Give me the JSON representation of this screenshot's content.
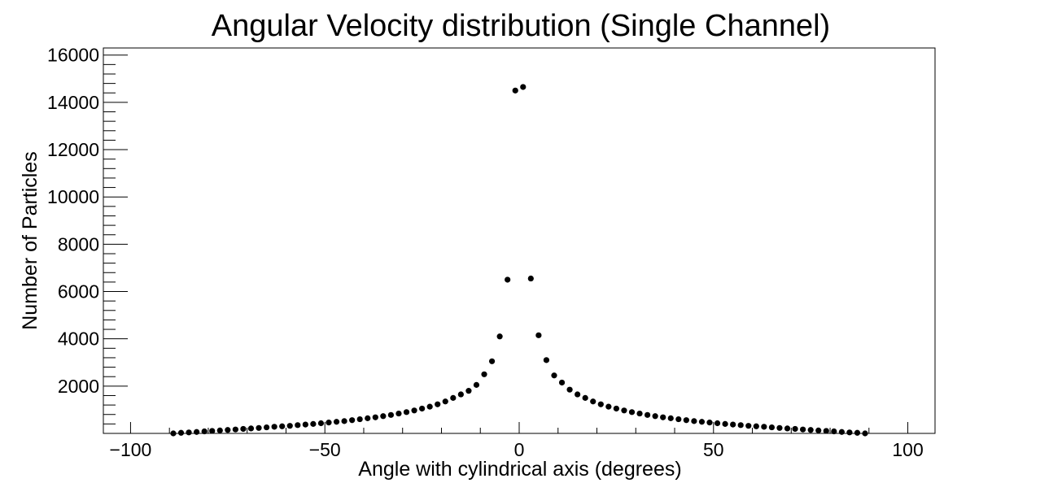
{
  "chart_data": {
    "type": "scatter",
    "title": "Angular Velocity distribution (Single Channel)",
    "xlabel": "Angle with cylindrical axis (degrees)",
    "ylabel": "Number of Particles",
    "xlim": [
      -107,
      107
    ],
    "ylim": [
      0,
      16300
    ],
    "x_ticks": [
      -100,
      -50,
      0,
      50,
      100
    ],
    "x_tick_labels": [
      "−100",
      "−50",
      "0",
      "50",
      "100"
    ],
    "y_ticks": [
      2000,
      4000,
      6000,
      8000,
      10000,
      12000,
      14000,
      16000
    ],
    "y_tick_labels": [
      "2000",
      "4000",
      "6000",
      "8000",
      "10000",
      "12000",
      "14000",
      "16000"
    ],
    "grid": false,
    "legend": "none",
    "marker_color": "#000000",
    "series": [
      {
        "x": [
          -89,
          -87,
          -85,
          -83,
          -81,
          -79,
          -77,
          -75,
          -73,
          -71,
          -69,
          -67,
          -65,
          -63,
          -61,
          -59,
          -57,
          -55,
          -53,
          -51,
          -49,
          -47,
          -45,
          -43,
          -41,
          -39,
          -37,
          -35,
          -33,
          -31,
          -29,
          -27,
          -25,
          -23,
          -21,
          -19,
          -17,
          -15,
          -13,
          -11,
          -9,
          -7,
          -5,
          -3,
          -1,
          1,
          3,
          5,
          7,
          9,
          11,
          13,
          15,
          17,
          19,
          21,
          23,
          25,
          27,
          29,
          31,
          33,
          35,
          37,
          39,
          41,
          43,
          45,
          47,
          49,
          51,
          53,
          55,
          57,
          59,
          61,
          63,
          65,
          67,
          69,
          71,
          73,
          75,
          77,
          79,
          81,
          83,
          85,
          87,
          89
        ],
        "y": [
          0,
          25,
          40,
          60,
          85,
          105,
          125,
          145,
          165,
          190,
          210,
          230,
          255,
          280,
          300,
          320,
          350,
          375,
          400,
          430,
          460,
          490,
          520,
          560,
          600,
          640,
          680,
          730,
          780,
          840,
          900,
          970,
          1050,
          1130,
          1230,
          1350,
          1500,
          1650,
          1800,
          2050,
          2500,
          3050,
          4100,
          6500,
          14500,
          14650,
          6550,
          4150,
          3100,
          2450,
          2150,
          1850,
          1650,
          1500,
          1350,
          1230,
          1130,
          1050,
          970,
          900,
          840,
          780,
          730,
          680,
          640,
          600,
          560,
          520,
          490,
          460,
          430,
          400,
          375,
          350,
          320,
          300,
          280,
          255,
          230,
          210,
          190,
          165,
          145,
          125,
          105,
          85,
          60,
          40,
          25,
          0
        ]
      }
    ]
  }
}
